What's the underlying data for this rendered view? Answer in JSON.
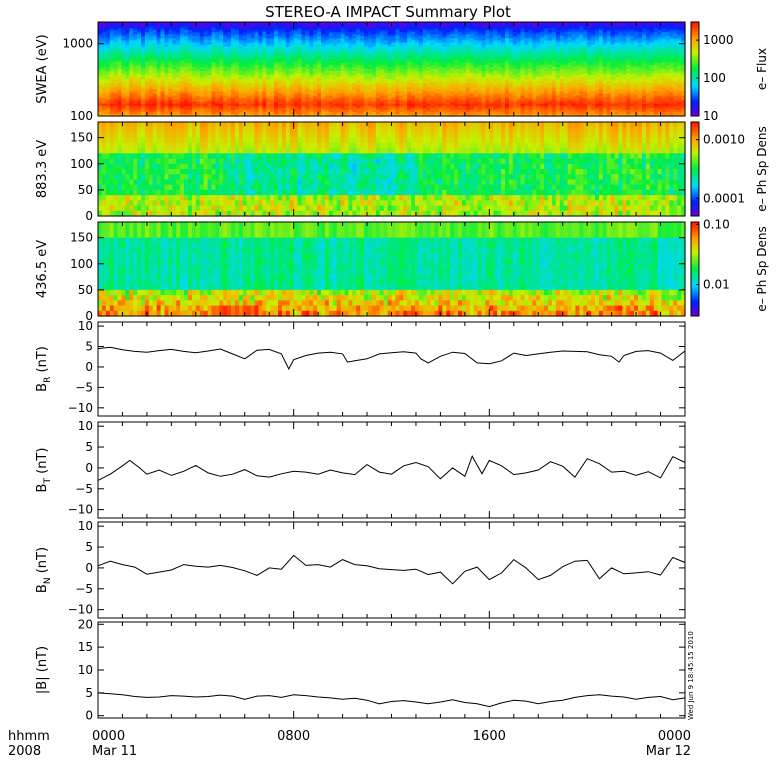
{
  "title": "STEREO-A IMPACT Summary Plot",
  "timestamp_stamp": "Wed Jun  9 18:45:15 2010",
  "x_axis": {
    "row1_label": "hhmm",
    "row2_label": "2008",
    "ticks": [
      {
        "hour": 0,
        "time": "0000",
        "date": "Mar 11"
      },
      {
        "hour": 8,
        "time": "0800",
        "date": ""
      },
      {
        "hour": 16,
        "time": "1600",
        "date": ""
      },
      {
        "hour": 24,
        "time": "0000",
        "date": "Mar 12"
      }
    ],
    "range_hours": [
      0,
      24
    ]
  },
  "chart_data": [
    {
      "type": "heatmap",
      "panel": "swea",
      "ylabel": "SWEA (eV)",
      "yscale": "log",
      "ylim": [
        100,
        2000
      ],
      "yticks": [
        {
          "v": 100,
          "label": "100"
        },
        {
          "v": 1000,
          "label": "1000"
        }
      ],
      "colorbar": {
        "label": "e– Flux",
        "scale": "log",
        "range": [
          10,
          3000
        ],
        "ticks": [
          {
            "v": 10,
            "label": "10"
          },
          {
            "v": 100,
            "label": "100"
          },
          {
            "v": 1000,
            "label": "1000"
          }
        ]
      },
      "description_bands": [
        {
          "energy": 1900,
          "color": "#3a10e0"
        },
        {
          "energy": 1400,
          "color": "#0a6cff"
        },
        {
          "energy": 1000,
          "color": "#10d0e8"
        },
        {
          "energy": 700,
          "color": "#30e860"
        },
        {
          "energy": 450,
          "color": "#70f000"
        },
        {
          "energy": 300,
          "color": "#d8f000"
        },
        {
          "energy": 200,
          "color": "#ffb000"
        },
        {
          "energy": 150,
          "color": "#ff6a00"
        },
        {
          "energy": 120,
          "color": "#ff3a00"
        },
        {
          "energy": 100,
          "color": "#ff8a00"
        }
      ]
    },
    {
      "type": "heatmap",
      "panel": "pad883",
      "ylabel": "883.3 eV",
      "ylim": [
        0,
        180
      ],
      "yticks": [
        {
          "v": 0,
          "label": "0"
        },
        {
          "v": 50,
          "label": "50"
        },
        {
          "v": 100,
          "label": "100"
        },
        {
          "v": 150,
          "label": "150"
        }
      ],
      "colorbar": {
        "label": "e– Ph Sp Dens",
        "scale": "log",
        "range": [
          5e-05,
          0.002
        ],
        "ticks": [
          {
            "v": 0.0001,
            "label": "0.0001"
          },
          {
            "v": 0.001,
            "label": "0.0010"
          }
        ]
      }
    },
    {
      "type": "heatmap",
      "panel": "pad436",
      "ylabel": "436.5 eV",
      "ylim": [
        0,
        180
      ],
      "yticks": [
        {
          "v": 0,
          "label": "0"
        },
        {
          "v": 50,
          "label": "50"
        },
        {
          "v": 100,
          "label": "100"
        },
        {
          "v": 150,
          "label": "150"
        }
      ],
      "colorbar": {
        "label": "e– Ph Sp Dens",
        "scale": "log",
        "range": [
          0.003,
          0.11
        ],
        "ticks": [
          {
            "v": 0.01,
            "label": "0.01"
          },
          {
            "v": 0.1,
            "label": "0.10"
          }
        ]
      }
    },
    {
      "type": "line",
      "panel": "br",
      "ylabel_main": "B",
      "ylabel_sub": "R",
      "ylabel_unit": " (nT)",
      "ylim": [
        -12,
        11
      ],
      "yticks": [
        {
          "v": -10,
          "label": "−10"
        },
        {
          "v": -5,
          "label": "−5"
        },
        {
          "v": 0,
          "label": "0"
        },
        {
          "v": 5,
          "label": "5"
        },
        {
          "v": 10,
          "label": "10"
        }
      ],
      "x": [
        0,
        0.5,
        1,
        1.5,
        2,
        2.5,
        3,
        3.5,
        4,
        4.5,
        5,
        5.5,
        6,
        6.5,
        7,
        7.5,
        7.8,
        8,
        8.5,
        9,
        9.5,
        10,
        10.2,
        10.5,
        11,
        11.5,
        12,
        12.5,
        13,
        13.2,
        13.5,
        14,
        14.5,
        15,
        15.5,
        16,
        16.5,
        17,
        17.5,
        18,
        18.5,
        19,
        19.5,
        20,
        20.5,
        21,
        21.3,
        21.5,
        22,
        22.5,
        23,
        23.5,
        24
      ],
      "y": [
        4.5,
        4.8,
        4.2,
        3.8,
        3.6,
        4.0,
        4.3,
        3.8,
        3.5,
        3.9,
        4.4,
        3.2,
        2.0,
        4.1,
        4.3,
        3.2,
        -0.5,
        1.8,
        2.8,
        3.4,
        3.6,
        3.2,
        1.2,
        1.5,
        2.0,
        3.2,
        3.5,
        3.7,
        3.4,
        2.0,
        1.0,
        2.6,
        3.6,
        3.3,
        1.0,
        0.8,
        1.5,
        3.4,
        2.8,
        3.2,
        3.6,
        3.9,
        3.8,
        3.7,
        3.0,
        2.6,
        1.2,
        2.8,
        3.8,
        4.0,
        3.4,
        1.6,
        3.9
      ]
    },
    {
      "type": "line",
      "panel": "bt",
      "ylabel_main": "B",
      "ylabel_sub": "T",
      "ylabel_unit": " (nT)",
      "ylim": [
        -12,
        11
      ],
      "yticks": [
        {
          "v": -10,
          "label": "−10"
        },
        {
          "v": -5,
          "label": "−5"
        },
        {
          "v": 0,
          "label": "0"
        },
        {
          "v": 5,
          "label": "5"
        },
        {
          "v": 10,
          "label": "10"
        }
      ],
      "x": [
        0,
        0.5,
        1,
        1.3,
        1.7,
        2,
        2.5,
        3,
        3.5,
        4,
        4.5,
        5,
        5.5,
        6,
        6.5,
        7,
        7.5,
        8,
        8.5,
        9,
        9.5,
        10,
        10.5,
        11,
        11.5,
        12,
        12.5,
        13,
        13.5,
        14,
        14.5,
        15,
        15.3,
        15.7,
        16,
        16.5,
        17,
        17.5,
        18,
        18.5,
        19,
        19.5,
        20,
        20.5,
        21,
        21.5,
        22,
        22.5,
        23,
        23.5,
        24
      ],
      "y": [
        -3.0,
        -1.5,
        0.5,
        1.8,
        0.0,
        -1.5,
        -0.5,
        -1.8,
        -0.8,
        0.6,
        -1.2,
        -2.0,
        -1.5,
        -0.4,
        -1.9,
        -2.2,
        -1.4,
        -0.8,
        -1.0,
        -1.5,
        -0.5,
        -1.2,
        -1.6,
        0.8,
        -1.0,
        -1.5,
        0.5,
        1.3,
        0.3,
        -2.6,
        0.0,
        -2.0,
        2.8,
        -1.4,
        1.8,
        0.5,
        -1.6,
        -1.2,
        -0.5,
        1.5,
        0.4,
        -2.2,
        2.2,
        1.0,
        -1.0,
        -0.8,
        -1.8,
        -0.9,
        -2.4,
        2.7,
        1.3
      ]
    },
    {
      "type": "line",
      "panel": "bn",
      "ylabel_main": "B",
      "ylabel_sub": "N",
      "ylabel_unit": " (nT)",
      "ylim": [
        -12,
        11
      ],
      "yticks": [
        {
          "v": -10,
          "label": "−10"
        },
        {
          "v": -5,
          "label": "−5"
        },
        {
          "v": 0,
          "label": "0"
        },
        {
          "v": 5,
          "label": "5"
        },
        {
          "v": 10,
          "label": "10"
        }
      ],
      "x": [
        0,
        0.5,
        1,
        1.5,
        2,
        2.5,
        3,
        3.5,
        4,
        4.5,
        5,
        5.5,
        6,
        6.5,
        7,
        7.5,
        8,
        8.5,
        9,
        9.5,
        10,
        10.5,
        11,
        11.5,
        12,
        12.5,
        13,
        13.5,
        14,
        14.5,
        15,
        15.5,
        16,
        16.5,
        17,
        17.5,
        18,
        18.5,
        19,
        19.5,
        20,
        20.5,
        21,
        21.5,
        22,
        22.5,
        23,
        23.5,
        24
      ],
      "y": [
        0.5,
        1.6,
        0.8,
        0.2,
        -1.5,
        -1.0,
        -0.5,
        0.8,
        0.4,
        0.2,
        0.6,
        0.1,
        -0.7,
        -1.8,
        0.0,
        -0.3,
        3.0,
        0.6,
        0.8,
        0.2,
        2.0,
        0.8,
        0.5,
        -0.2,
        -0.4,
        -0.6,
        -0.3,
        -1.6,
        -1.0,
        -3.8,
        -0.8,
        0.2,
        -2.8,
        -1.2,
        2.0,
        0.0,
        -2.8,
        -1.8,
        0.3,
        1.6,
        1.8,
        -2.6,
        0.0,
        -1.4,
        -1.2,
        -0.9,
        -1.7,
        2.5,
        1.3
      ]
    },
    {
      "type": "line",
      "panel": "bmag",
      "ylabel_main": "|B|",
      "ylabel_sub": "",
      "ylabel_unit": " (nT)",
      "ylim": [
        -0.5,
        20.5
      ],
      "yticks": [
        {
          "v": 0,
          "label": "0"
        },
        {
          "v": 5,
          "label": "5"
        },
        {
          "v": 10,
          "label": "10"
        },
        {
          "v": 15,
          "label": "15"
        },
        {
          "v": 20,
          "label": "20"
        }
      ],
      "x": [
        0,
        0.5,
        1,
        1.5,
        2,
        2.5,
        3,
        3.5,
        4,
        4.5,
        5,
        5.5,
        6,
        6.5,
        7,
        7.5,
        8,
        8.5,
        9,
        9.5,
        10,
        10.5,
        11,
        11.5,
        12,
        12.5,
        13,
        13.5,
        14,
        14.5,
        15,
        15.5,
        16,
        16.5,
        17,
        17.5,
        18,
        18.5,
        19,
        19.5,
        20,
        20.5,
        21,
        21.5,
        22,
        22.5,
        23,
        23.5,
        24
      ],
      "y": [
        5.0,
        4.8,
        4.6,
        4.2,
        4.0,
        4.1,
        4.4,
        4.3,
        4.1,
        4.2,
        4.5,
        4.3,
        3.6,
        4.3,
        4.4,
        4.0,
        4.6,
        4.4,
        4.1,
        3.9,
        3.6,
        3.8,
        3.4,
        2.6,
        3.1,
        3.3,
        3.0,
        2.6,
        3.0,
        3.5,
        2.9,
        2.6,
        2.0,
        2.8,
        3.4,
        3.2,
        2.6,
        3.1,
        3.4,
        4.0,
        4.4,
        4.6,
        4.3,
        4.1,
        3.6,
        4.0,
        4.2,
        3.5,
        3.9
      ]
    }
  ]
}
